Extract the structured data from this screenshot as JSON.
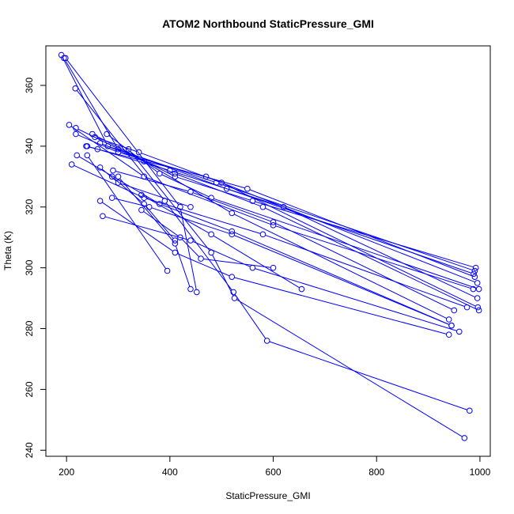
{
  "chart_data": {
    "type": "line",
    "title": "ATOM2 Northbound StaticPressure_GMI",
    "xlabel": "StaticPressure_GMI",
    "ylabel": "Theta (K)",
    "xlim": [
      160,
      1020
    ],
    "ylim": [
      238,
      373
    ],
    "xticks": [
      200,
      400,
      600,
      800,
      1000
    ],
    "yticks": [
      240,
      260,
      280,
      300,
      320,
      340,
      360
    ],
    "grid": false,
    "legend": "none",
    "marker": "open-circle",
    "color": "#0000ff",
    "series": [
      {
        "points": [
          [
            190,
            370
          ],
          [
            280,
            340
          ],
          [
            490,
            328
          ],
          [
            990,
            299
          ]
        ]
      },
      {
        "points": [
          [
            195,
            369
          ],
          [
            300,
            339
          ],
          [
            510,
            326
          ],
          [
            988,
            298
          ]
        ]
      },
      {
        "points": [
          [
            198,
            369
          ],
          [
            420,
            320
          ],
          [
            452,
            292
          ]
        ]
      },
      {
        "points": [
          [
            205,
            347
          ],
          [
            350,
            330
          ],
          [
            600,
            314
          ],
          [
            987,
            293
          ]
        ]
      },
      {
        "points": [
          [
            210,
            334
          ],
          [
            350,
            323
          ],
          [
            580,
            311
          ],
          [
            975,
            287
          ]
        ]
      },
      {
        "points": [
          [
            217,
            359
          ],
          [
            390,
            322
          ],
          [
            523,
            292
          ],
          [
            588,
            276
          ],
          [
            980,
            253
          ]
        ]
      },
      {
        "points": [
          [
            218,
            346
          ],
          [
            350,
            335
          ],
          [
            520,
            318
          ],
          [
            940,
            283
          ]
        ]
      },
      {
        "points": [
          [
            218,
            344
          ],
          [
            300,
            338
          ],
          [
            550,
            326
          ],
          [
            990,
            297
          ]
        ]
      },
      {
        "points": [
          [
            220,
            337
          ],
          [
            380,
            321
          ],
          [
            520,
            312
          ],
          [
            945,
            281
          ]
        ]
      },
      {
        "points": [
          [
            238,
            340
          ],
          [
            260,
            339
          ],
          [
            470,
            330
          ],
          [
            995,
            295
          ]
        ]
      },
      {
        "points": [
          [
            240,
            337
          ],
          [
            395,
            299
          ]
        ]
      },
      {
        "points": [
          [
            240,
            340
          ],
          [
            400,
            332
          ],
          [
            620,
            320
          ],
          [
            995,
            290
          ]
        ]
      },
      {
        "points": [
          [
            250,
            344
          ],
          [
            410,
            330
          ],
          [
            560,
            322
          ],
          [
            992,
            300
          ]
        ]
      },
      {
        "points": [
          [
            255,
            343
          ],
          [
            340,
            338
          ],
          [
            500,
            328
          ],
          [
            996,
            287
          ]
        ]
      },
      {
        "points": [
          [
            265,
            341
          ],
          [
            410,
            331
          ],
          [
            580,
            320
          ],
          [
            998,
            286
          ]
        ]
      },
      {
        "points": [
          [
            265,
            333
          ],
          [
            300,
            328
          ],
          [
            440,
            320
          ]
        ]
      },
      {
        "points": [
          [
            265,
            322
          ],
          [
            410,
            305
          ],
          [
            520,
            297
          ],
          [
            940,
            278
          ]
        ]
      },
      {
        "points": [
          [
            270,
            317
          ],
          [
            440,
            309
          ],
          [
            560,
            300
          ],
          [
            960,
            279
          ]
        ]
      },
      {
        "points": [
          [
            278,
            344
          ],
          [
            380,
            331
          ],
          [
            480,
            323
          ],
          [
            998,
            293
          ]
        ]
      },
      {
        "points": [
          [
            288,
            323
          ],
          [
            360,
            320
          ],
          [
            520,
            311
          ],
          [
            945,
            281
          ]
        ]
      },
      {
        "points": [
          [
            288,
            330
          ],
          [
            350,
            321
          ],
          [
            410,
            309
          ]
        ]
      },
      {
        "points": [
          [
            290,
            332
          ],
          [
            440,
            325
          ],
          [
            600,
            315
          ],
          [
            950,
            286
          ]
        ]
      },
      {
        "points": [
          [
            300,
            330
          ],
          [
            410,
            308
          ],
          [
            440,
            293
          ]
        ]
      },
      {
        "points": [
          [
            320,
            339
          ],
          [
            480,
            305
          ],
          [
            525,
            290
          ],
          [
            970,
            244
          ]
        ]
      },
      {
        "points": [
          [
            345,
            324
          ],
          [
            480,
            311
          ],
          [
            655,
            293
          ]
        ]
      },
      {
        "points": [
          [
            345,
            319
          ],
          [
            420,
            310
          ],
          [
            460,
            303
          ],
          [
            600,
            300
          ]
        ]
      }
    ]
  }
}
